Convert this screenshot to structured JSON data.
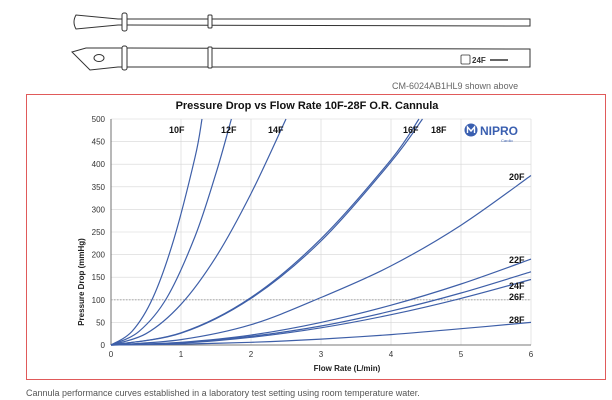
{
  "header": {
    "cannula_size_marking": "24F",
    "model_caption": "CM-6024AB1HL9 shown above"
  },
  "footer": {
    "note": "Cannula performance curves established in a laboratory test setting using room temperature water."
  },
  "logo": {
    "brand": "NIPRO",
    "sub": "Cardio",
    "icon": "nipro-logo",
    "color": "#3a5fb0"
  },
  "colors": {
    "curve": "#3e5fa8",
    "frame_border": "#e05a5a",
    "reference_line": "#9a9a9a"
  },
  "chart_data": {
    "type": "line",
    "title": "Pressure Drop vs Flow Rate 10F-28F O.R. Cannula",
    "xlabel": "Flow Rate (L/min)",
    "ylabel": "Pressure Drop (mmHg)",
    "xlim": [
      0,
      6
    ],
    "ylim": [
      0,
      500
    ],
    "x_ticks": [
      "0",
      "1",
      "2",
      "3",
      "4",
      "5",
      "6"
    ],
    "y_ticks": [
      "0",
      "50",
      "100",
      "150",
      "200",
      "250",
      "300",
      "350",
      "400",
      "450",
      "500"
    ],
    "grid": true,
    "reference_line": {
      "y": 100,
      "style": "dotted"
    },
    "series": [
      {
        "name": "10F",
        "points": [
          [
            0,
            0
          ],
          [
            0.3,
            30
          ],
          [
            0.6,
            105
          ],
          [
            0.9,
            235
          ],
          [
            1.2,
            415
          ],
          [
            1.3,
            500
          ]
        ]
      },
      {
        "name": "12F",
        "points": [
          [
            0,
            0
          ],
          [
            0.4,
            30
          ],
          [
            0.8,
            105
          ],
          [
            1.2,
            240
          ],
          [
            1.5,
            380
          ],
          [
            1.72,
            500
          ]
        ]
      },
      {
        "name": "14F",
        "points": [
          [
            0,
            0
          ],
          [
            0.5,
            25
          ],
          [
            1,
            90
          ],
          [
            1.5,
            195
          ],
          [
            2,
            335
          ],
          [
            2.5,
            500
          ]
        ]
      },
      {
        "name": "16F",
        "points": [
          [
            0,
            0
          ],
          [
            1,
            27
          ],
          [
            2,
            105
          ],
          [
            3,
            235
          ],
          [
            4,
            410
          ],
          [
            4.4,
            500
          ]
        ]
      },
      {
        "name": "18F",
        "points": [
          [
            0,
            0
          ],
          [
            1,
            26
          ],
          [
            2,
            103
          ],
          [
            3,
            230
          ],
          [
            4,
            405
          ],
          [
            4.45,
            500
          ]
        ]
      },
      {
        "name": "20F",
        "points": [
          [
            0,
            0
          ],
          [
            1,
            12
          ],
          [
            2,
            45
          ],
          [
            3,
            105
          ],
          [
            4,
            175
          ],
          [
            5,
            265
          ],
          [
            6,
            375
          ]
        ]
      },
      {
        "name": "22F",
        "points": [
          [
            0,
            0
          ],
          [
            1,
            6
          ],
          [
            2,
            22
          ],
          [
            3,
            50
          ],
          [
            4,
            88
          ],
          [
            5,
            135
          ],
          [
            6,
            190
          ]
        ]
      },
      {
        "name": "24F",
        "points": [
          [
            0,
            0
          ],
          [
            1,
            5
          ],
          [
            2,
            19
          ],
          [
            3,
            42
          ],
          [
            4,
            75
          ],
          [
            5,
            115
          ],
          [
            6,
            162
          ]
        ]
      },
      {
        "name": "26F",
        "points": [
          [
            0,
            0
          ],
          [
            1,
            4
          ],
          [
            2,
            17
          ],
          [
            3,
            38
          ],
          [
            4,
            67
          ],
          [
            5,
            103
          ],
          [
            6,
            145
          ]
        ]
      },
      {
        "name": "28F",
        "points": [
          [
            0,
            0
          ],
          [
            1,
            2
          ],
          [
            2,
            6
          ],
          [
            3,
            13
          ],
          [
            4,
            23
          ],
          [
            5,
            36
          ],
          [
            6,
            50
          ]
        ]
      }
    ]
  }
}
